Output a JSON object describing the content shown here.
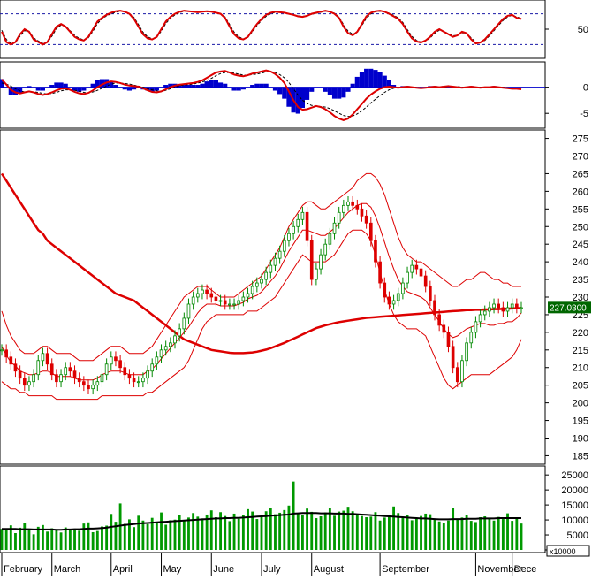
{
  "colors": {
    "background": "#ffffff",
    "up_candle": "#008800",
    "down_candle": "#dd0000",
    "moving_average": "#dd0000",
    "bollinger": "#dd0000",
    "stoch_line": "#dd0000",
    "stoch_signal": "#000000",
    "stoch_band": "#1a1aa8",
    "macd_histogram": "#0000cc",
    "volume_bar": "#009900",
    "volume_ma": "#000000",
    "price_tag_bg": "#006600"
  },
  "price_tag": "227.0300",
  "volume_unit": "x10000",
  "chart_data": [
    {
      "type": "line",
      "panel": "stochastic",
      "y_ticks": [
        "50"
      ],
      "y_ticks_values": [
        50
      ],
      "ylim": [
        0,
        100
      ],
      "bands": [
        20,
        80
      ],
      "grid": false,
      "series": [
        {
          "role": "main",
          "values": [
            45,
            25,
            20,
            25,
            40,
            50,
            45,
            30,
            25,
            20,
            25,
            40,
            55,
            60,
            55,
            45,
            35,
            30,
            28,
            35,
            50,
            65,
            72,
            78,
            82,
            85,
            86,
            84,
            80,
            70,
            55,
            40,
            32,
            30,
            35,
            50,
            65,
            74,
            80,
            84,
            86,
            85,
            84,
            83,
            84,
            85,
            84,
            82,
            80,
            72,
            55,
            40,
            32,
            30,
            35,
            48,
            60,
            70,
            78,
            82,
            84,
            83,
            82,
            80,
            78,
            75,
            74,
            76,
            80,
            82,
            84,
            86,
            84,
            80,
            72,
            55,
            42,
            38,
            45,
            60,
            75,
            82,
            85,
            86,
            84,
            80,
            75,
            70,
            60,
            45,
            32,
            26,
            24,
            28,
            35,
            45,
            50,
            45,
            40,
            35,
            38,
            45,
            42,
            30,
            22,
            24,
            30,
            40,
            50,
            60,
            70,
            76,
            78,
            72,
            70
          ]
        },
        {
          "role": "signal",
          "values": [
            48,
            30,
            22,
            24,
            36,
            47,
            46,
            33,
            27,
            22,
            24,
            36,
            51,
            58,
            56,
            47,
            38,
            32,
            29,
            33,
            46,
            61,
            70,
            76,
            80,
            83,
            85,
            84,
            81,
            73,
            59,
            44,
            35,
            31,
            34,
            46,
            61,
            71,
            78,
            82,
            85,
            85,
            84,
            83,
            84,
            84,
            84,
            82,
            80,
            74,
            59,
            44,
            35,
            31,
            34,
            45,
            57,
            67,
            75,
            80,
            83,
            83,
            82,
            80,
            78,
            76,
            75,
            76,
            79,
            81,
            83,
            85,
            84,
            81,
            74,
            59,
            46,
            40,
            44,
            57,
            71,
            80,
            84,
            85,
            84,
            81,
            77,
            72,
            63,
            49,
            36,
            28,
            25,
            27,
            33,
            42,
            48,
            46,
            41,
            37,
            38,
            43,
            42,
            33,
            25,
            24,
            28,
            37,
            47,
            57,
            67,
            74,
            77,
            74,
            71
          ]
        }
      ]
    },
    {
      "type": "line",
      "panel": "macd",
      "y_ticks": [
        "0",
        "-5"
      ],
      "y_ticks_values": [
        0,
        -5
      ],
      "ylim": [
        -7.5,
        4.5
      ],
      "grid": false,
      "series": [
        {
          "role": "macd",
          "values": [
            1.5,
            0.5,
            -0.5,
            -1,
            -1.2,
            -1,
            -0.8,
            -1,
            -1.3,
            -1.5,
            -1.3,
            -1,
            -0.6,
            -0.3,
            -0.2,
            -0.5,
            -0.9,
            -1.2,
            -1.3,
            -1.1,
            -0.6,
            0,
            0.5,
            0.9,
            1.1,
            1.0,
            0.8,
            0.5,
            0.3,
            0.2,
            0.1,
            -0.2,
            -0.6,
            -0.9,
            -1.0,
            -0.8,
            -0.4,
            0,
            0.3,
            0.5,
            0.6,
            0.7,
            0.8,
            1.0,
            1.3,
            1.8,
            2.3,
            2.8,
            3.0,
            3.1,
            2.8,
            2.4,
            2.2,
            2.1,
            2.3,
            2.6,
            2.8,
            3.0,
            3.2,
            3.0,
            2.5,
            1.8,
            0.8,
            -0.8,
            -2.5,
            -3.8,
            -4.3,
            -4.2,
            -3.9,
            -3.6,
            -3.8,
            -4.2,
            -4.8,
            -5.5,
            -6.0,
            -6.3,
            -6.0,
            -5.2,
            -4.2,
            -3.2,
            -2.2,
            -1.4,
            -0.8,
            -0.3,
            0.0,
            0.1,
            0.0,
            -0.1,
            0.0,
            0.1,
            0.0,
            -0.1,
            -0.2,
            -0.1,
            0.0,
            0.1,
            0.0,
            0.1,
            0.2,
            0.1,
            0.0,
            -0.1,
            0.0,
            0.1,
            0.0,
            -0.1,
            0.0,
            0.0,
            0.1,
            0.0,
            -0.1,
            -0.2,
            -0.3,
            -0.3,
            -0.4
          ]
        },
        {
          "role": "signal",
          "values": [
            0.8,
            0.6,
            0.2,
            -0.3,
            -0.7,
            -0.9,
            -0.9,
            -0.9,
            -1.0,
            -1.2,
            -1.3,
            -1.2,
            -1.0,
            -0.7,
            -0.5,
            -0.5,
            -0.6,
            -0.8,
            -1.0,
            -1.1,
            -0.9,
            -0.6,
            -0.2,
            0.2,
            0.6,
            0.8,
            0.8,
            0.7,
            0.6,
            0.4,
            0.2,
            0.0,
            -0.3,
            -0.5,
            -0.7,
            -0.8,
            -0.6,
            -0.3,
            0.0,
            0.3,
            0.4,
            0.5,
            0.6,
            0.8,
            1.0,
            1.3,
            1.7,
            2.2,
            2.6,
            2.8,
            2.8,
            2.7,
            2.5,
            2.3,
            2.3,
            2.4,
            2.5,
            2.7,
            2.9,
            3.0,
            2.8,
            2.4,
            1.8,
            0.9,
            -0.3,
            -1.5,
            -2.5,
            -3.1,
            -3.5,
            -3.6,
            -3.7,
            -3.8,
            -4.1,
            -4.5,
            -5.0,
            -5.4,
            -5.6,
            -5.5,
            -5.1,
            -4.5,
            -3.8,
            -3.0,
            -2.3,
            -1.6,
            -1.0,
            -0.5,
            -0.2,
            -0.1,
            -0.1,
            0.0,
            0.0,
            0.0,
            -0.1,
            -0.1,
            -0.1,
            0.0,
            0.0,
            0.0,
            0.1,
            0.1,
            0.1,
            0.0,
            0.0,
            0.0,
            0.0,
            0.0,
            0.0,
            0.0,
            0.0,
            0.0,
            0.0,
            -0.1,
            -0.2,
            -0.3,
            -0.4
          ]
        }
      ]
    },
    {
      "type": "candlestick",
      "panel": "price",
      "x_ticks": [
        "February",
        "March",
        "April",
        "May",
        "June",
        "July",
        "August",
        "September",
        "November",
        "Dece"
      ],
      "y_ticks": [
        "275",
        "270",
        "265",
        "260",
        "255",
        "250",
        "245",
        "240",
        "235",
        "230",
        "225",
        "220",
        "215",
        "210",
        "205",
        "200",
        "195",
        "190",
        "185"
      ],
      "y_ticks_values": [
        275,
        270,
        265,
        260,
        255,
        250,
        245,
        240,
        235,
        230,
        225,
        220,
        215,
        210,
        205,
        200,
        195,
        190,
        185
      ],
      "ylim": [
        182.6,
        277.4
      ],
      "grid": false,
      "close": [
        215,
        213,
        211,
        209,
        207,
        205,
        206,
        208,
        212,
        214,
        211,
        208,
        206,
        208,
        210,
        209,
        207,
        206,
        205,
        204,
        205,
        206,
        208,
        211,
        213,
        212,
        210,
        208,
        207,
        206,
        206,
        207,
        209,
        211,
        213,
        215,
        216,
        217,
        219,
        221,
        224,
        228,
        230,
        231,
        232,
        231,
        230,
        229,
        229,
        228,
        228,
        228,
        229,
        230,
        231,
        233,
        234,
        235,
        237,
        239,
        241,
        243,
        246,
        248,
        250,
        252,
        254,
        246,
        235,
        238,
        242,
        245,
        248,
        251,
        254,
        256,
        257,
        256,
        255,
        253,
        251,
        246,
        240,
        234,
        230,
        228,
        229,
        231,
        234,
        237,
        239,
        238,
        236,
        233,
        229,
        225,
        222,
        220,
        216,
        210,
        206,
        212,
        217,
        220,
        223,
        225,
        226,
        227,
        228,
        227,
        226,
        227,
        228,
        227,
        227
      ],
      "bollinger_upper": [
        226,
        222,
        219,
        217,
        215,
        214,
        214,
        214,
        215,
        216,
        216,
        215,
        214,
        214,
        214,
        214,
        213,
        212,
        212,
        212,
        212,
        213,
        214,
        215,
        216,
        216,
        216,
        215,
        214,
        214,
        214,
        214,
        215,
        216,
        218,
        220,
        222,
        224,
        226,
        228,
        230,
        231,
        232,
        233,
        233,
        233,
        232,
        231,
        230,
        230,
        230,
        230,
        231,
        232,
        233,
        234,
        235,
        236,
        238,
        240,
        242,
        244,
        247,
        250,
        252,
        254,
        256,
        257,
        257,
        256,
        255,
        255,
        256,
        257,
        258,
        259,
        260,
        261,
        263,
        264,
        265,
        265,
        264,
        262,
        259,
        255,
        251,
        247,
        244,
        242,
        241,
        240,
        240,
        239,
        238,
        237,
        236,
        235,
        234,
        233,
        233,
        234,
        235,
        235,
        236,
        237,
        237,
        236,
        235,
        235,
        234,
        234,
        233,
        233,
        233
      ],
      "bollinger_lower": [
        206,
        205,
        204,
        204,
        203,
        203,
        202,
        202,
        202,
        202,
        202,
        202,
        201,
        201,
        201,
        201,
        201,
        201,
        201,
        201,
        201,
        201,
        202,
        202,
        202,
        202,
        202,
        202,
        202,
        202,
        202,
        202,
        203,
        203,
        204,
        205,
        206,
        207,
        208,
        209,
        210,
        212,
        215,
        218,
        221,
        223,
        224,
        225,
        225,
        225,
        225,
        225,
        225,
        225,
        226,
        226,
        226,
        227,
        228,
        229,
        230,
        232,
        234,
        236,
        238,
        240,
        242,
        241,
        240,
        240,
        240,
        240,
        241,
        242,
        244,
        246,
        248,
        249,
        249,
        249,
        248,
        246,
        242,
        237,
        232,
        228,
        225,
        223,
        222,
        221,
        221,
        221,
        220,
        219,
        216,
        213,
        210,
        207,
        205,
        204,
        205,
        206,
        207,
        208,
        208,
        208,
        208,
        208,
        209,
        210,
        211,
        212,
        213,
        215,
        218
      ],
      "ma_long": [
        265,
        263,
        261,
        259,
        257,
        255,
        253,
        251,
        249,
        248,
        246,
        245,
        244,
        243,
        242,
        241,
        240,
        239,
        238,
        237,
        236,
        235,
        234,
        233,
        232,
        231,
        230.5,
        230,
        229.5,
        229,
        228,
        227,
        226,
        225,
        224,
        223,
        222,
        221,
        220,
        219,
        218,
        217.5,
        217,
        216.5,
        216,
        215.5,
        215,
        214.8,
        214.6,
        214.4,
        214.2,
        214.1,
        214.1,
        214.1,
        214.2,
        214.3,
        214.5,
        214.8,
        215.1,
        215.5,
        216,
        216.5,
        217,
        217.6,
        218.2,
        218.8,
        219.4,
        220,
        220.6,
        221.2,
        221.6,
        222,
        222.3,
        222.6,
        222.9,
        223.1,
        223.3,
        223.5,
        223.7,
        223.9,
        224.1,
        224.2,
        224.3,
        224.4,
        224.5,
        224.6,
        224.7,
        224.8,
        224.9,
        225,
        225.1,
        225.2,
        225.3,
        225.4,
        225.5,
        225.6,
        225.7,
        225.8,
        225.9,
        226,
        226.1,
        226.2,
        226.3,
        226.3,
        226.4,
        226.4,
        226.5,
        226.5,
        226.6,
        226.6,
        226.7,
        226.7,
        226.8,
        226.8,
        226.9
      ]
    },
    {
      "type": "bar",
      "panel": "volume",
      "y_ticks": [
        "25000",
        "20000",
        "15000",
        "10000",
        "5000",
        "0"
      ],
      "y_ticks_values": [
        25000,
        20000,
        15000,
        10000,
        5000,
        0
      ],
      "ylim": [
        0,
        28000
      ],
      "grid": false,
      "values": [
        7000,
        6500,
        8200,
        5600,
        7400,
        9100,
        6800,
        5200,
        7700,
        8300,
        6100,
        7200,
        6600,
        5800,
        7500,
        6900,
        7100,
        6400,
        8800,
        9200,
        5900,
        6300,
        7800,
        8100,
        12000,
        9400,
        15500,
        8700,
        10200,
        7600,
        11400,
        9800,
        8600,
        10700,
        9300,
        12500,
        8400,
        9900,
        10100,
        11600,
        9700,
        10800,
        12300,
        11100,
        10500,
        11800,
        13200,
        10900,
        12600,
        11300,
        9600,
        12100,
        10400,
        11700,
        13600,
        12800,
        10300,
        11500,
        12900,
        14100,
        11900,
        12400,
        13300,
        14800,
        22800,
        12200,
        11600,
        13800,
        12700,
        10600,
        11200,
        12500,
        13900,
        11400,
        12800,
        13100,
        14400,
        12900,
        11800,
        11300,
        10900,
        11100,
        12600,
        9800,
        10800,
        11700,
        14500,
        12300,
        10700,
        11500,
        9900,
        10600,
        11300,
        12100,
        11900,
        10200,
        9500,
        9000,
        9800,
        14000,
        10400,
        10800,
        11600,
        9700,
        9300,
        10900,
        11200,
        10500,
        9800,
        11000,
        10300,
        12200,
        9700,
        10600,
        8800
      ],
      "ma_values": [
        7000,
        7000,
        7000,
        7000,
        6900,
        6900,
        6900,
        6800,
        6800,
        6800,
        6800,
        6800,
        6700,
        6700,
        6800,
        6800,
        6900,
        6900,
        7000,
        7100,
        7100,
        7200,
        7300,
        7400,
        7700,
        7900,
        8100,
        8300,
        8500,
        8600,
        8800,
        8900,
        9000,
        9100,
        9200,
        9300,
        9400,
        9500,
        9600,
        9700,
        9800,
        9900,
        10000,
        10100,
        10200,
        10300,
        10400,
        10500,
        10500,
        10600,
        10600,
        10700,
        10700,
        10800,
        10900,
        11000,
        11100,
        11200,
        11300,
        11400,
        11500,
        11600,
        11700,
        11800,
        12100,
        12200,
        12300,
        12300,
        12300,
        12300,
        12200,
        12200,
        12200,
        12100,
        12100,
        12100,
        12000,
        12000,
        11900,
        11800,
        11700,
        11600,
        11500,
        11400,
        11300,
        11200,
        11100,
        11000,
        10900,
        10800,
        10700,
        10600,
        10500,
        10500,
        10400,
        10300,
        10200,
        10200,
        10200,
        10300,
        10300,
        10300,
        10400,
        10400,
        10400,
        10500,
        10500,
        10500,
        10500,
        10600,
        10600,
        10600,
        10600,
        10600,
        10600
      ]
    }
  ]
}
